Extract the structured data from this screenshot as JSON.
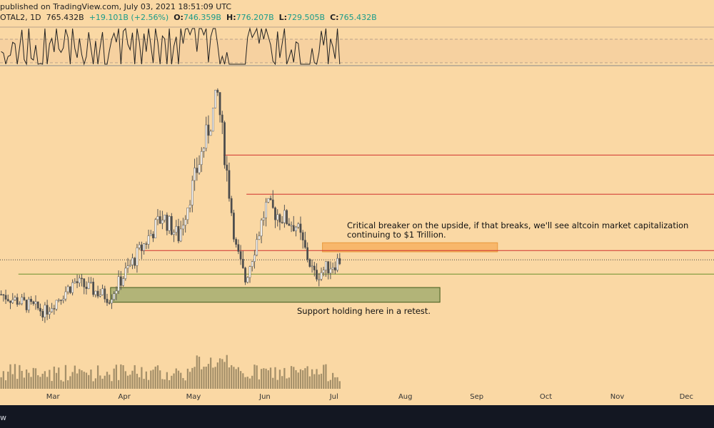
{
  "header": {
    "published": "published on TradingView.com, July 03, 2021 18:51:09 UTC",
    "symbol": "OTAL2, 1D",
    "last": "765.432B",
    "change": "+19.101B (+2.56%)",
    "o_label": "O:",
    "o_value": "746.359B",
    "h_label": "H:",
    "h_value": "776.207B",
    "l_label": "L:",
    "l_value": "729.505B",
    "c_label": "C:",
    "c_value": "765.432B"
  },
  "footer": {
    "brand": "w"
  },
  "colors": {
    "background": "#fad8a4",
    "up_candle": "#ffffff",
    "down_candle": "#4a4a4a",
    "resistance_line": "#d0312d",
    "support_line": "#6b8f2d",
    "support_zone": "#9aa86a",
    "breaker_zone": "#f7b262",
    "volume": "#8f7d5a",
    "indicator_line": "#222222"
  },
  "annotations": {
    "breaker": "Critical breaker on the upside, if that breaks, we'll see altcoin market capitalization continuing to $1 Trillion.",
    "support": "Support holding here in a retest."
  },
  "chart_data": {
    "type": "candlestick",
    "x_axis_labels": [
      "Mar",
      "Apr",
      "May",
      "Jun",
      "Jul",
      "Aug",
      "Sep",
      "Oct",
      "Nov",
      "Dec"
    ],
    "x_range": [
      "2021-02-06",
      "2021-12-13"
    ],
    "price_scale_visible": false,
    "last_close": "765.432B",
    "shape": {
      "start": 655,
      "mar_low": 600,
      "apr_high": 905,
      "apr_low": 840,
      "may_peak": 1290,
      "crash_low": 700,
      "jun_bounce": 935,
      "june_low": 715,
      "last": 765.4
    },
    "levels": {
      "resistance_upper": 1100,
      "resistance_mid": 975,
      "breaker": 795,
      "support_line": 720,
      "support_zone_top": 677,
      "support_zone_bottom": 630,
      "breaker_zone_top": 820,
      "breaker_zone_bottom": 791
    },
    "zones": {
      "support": {
        "from": "2021-03-26",
        "to": "2021-08-16"
      },
      "breaker": {
        "from": "2021-06-26",
        "to": "2021-09-10"
      }
    },
    "price_min": 520,
    "price_max": 1340
  }
}
